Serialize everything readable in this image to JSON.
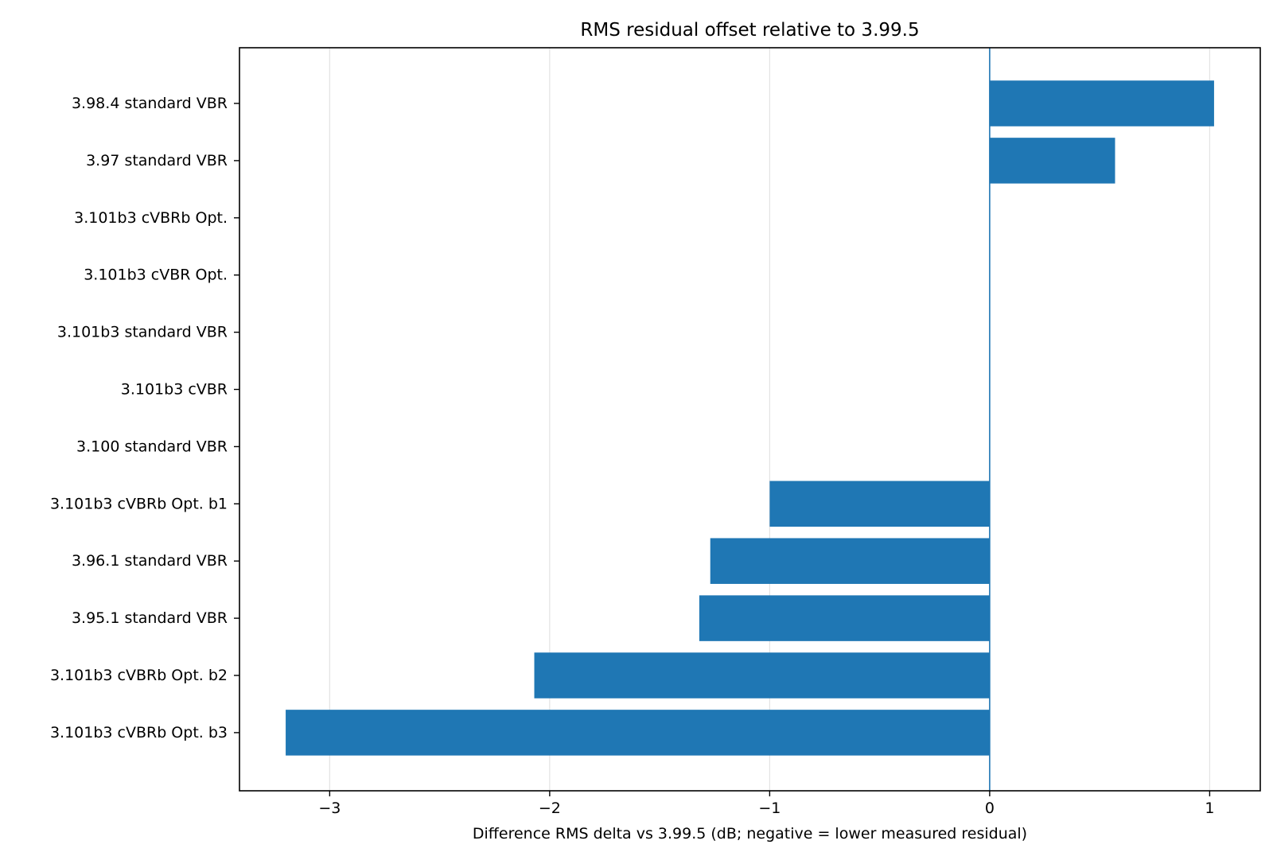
{
  "chart_data": {
    "type": "bar",
    "orientation": "horizontal",
    "title": "RMS residual offset relative to 3.99.5",
    "xlabel": "Difference RMS delta vs 3.99.5 (dB; negative = lower measured residual)",
    "ylabel": "",
    "xlim": [
      -3.41,
      1.23
    ],
    "xticks": [
      {
        "value": -3,
        "label": "−3"
      },
      {
        "value": -2,
        "label": "−2"
      },
      {
        "value": -1,
        "label": "−1"
      },
      {
        "value": 0,
        "label": "0"
      },
      {
        "value": 1,
        "label": "1"
      }
    ],
    "categories": [
      "3.98.4 standard VBR",
      "3.97 standard VBR",
      "3.101b3 cVBRb Opt.",
      "3.101b3 cVBR Opt.",
      "3.101b3 standard VBR",
      "3.101b3 cVBR",
      "3.100 standard VBR",
      "3.101b3 cVBRb Opt. b1",
      "3.96.1 standard VBR",
      "3.95.1 standard VBR",
      "3.101b3 cVBRb Opt. b2",
      "3.101b3 cVBRb Opt. b3"
    ],
    "values": [
      1.02,
      0.57,
      0,
      0,
      0,
      0,
      0,
      -1.0,
      -1.27,
      -1.32,
      -2.07,
      -3.2
    ],
    "grid": "x",
    "reference_line": 0,
    "colors": {
      "bar": "#1f77b4",
      "grid": "#e3e3e3",
      "axes": "#000000",
      "reference": "#1f77b4"
    }
  }
}
